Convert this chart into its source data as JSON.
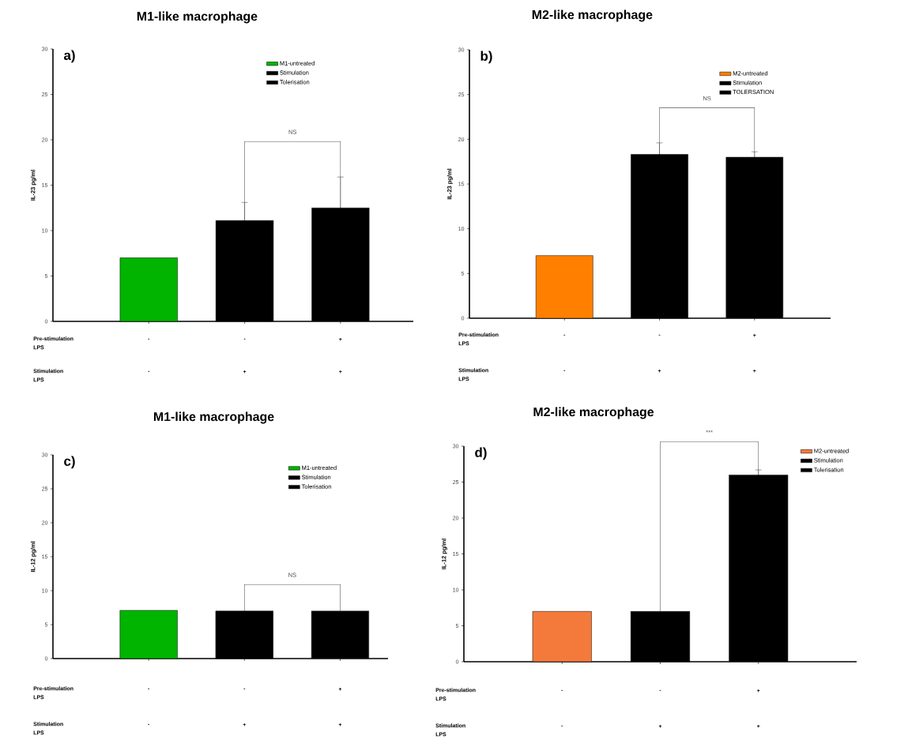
{
  "chart_data": [
    {
      "type": "bar",
      "title": "M1-like macrophage",
      "ylabel": "IL-23 pg/ml",
      "categories": [
        null,
        null,
        null
      ],
      "series": [
        {
          "name": "M1-untreated",
          "color": "#00b400",
          "values": [
            7,
            null,
            null
          ]
        },
        {
          "name": "Stimulation",
          "color": "#000000",
          "values": [
            null,
            11.1,
            null
          ],
          "errors": [
            null,
            2.0,
            null
          ]
        },
        {
          "name": "Tolerisation",
          "color": "#000000",
          "values": [
            null,
            null,
            12.5
          ],
          "errors": [
            null,
            null,
            3.4
          ]
        }
      ],
      "ylim": [
        0,
        30
      ],
      "yticks": [
        0,
        5,
        10,
        15,
        20,
        25,
        30
      ],
      "tick_labels": "y",
      "legend": "top right",
      "annotations": [
        "a)",
        "NS",
        "Pre-stimulation LPS",
        "-",
        "-",
        "+",
        "Stimulation LPS",
        "-",
        "+",
        "+"
      ]
    },
    {
      "type": "bar",
      "title": "M2-like macrophage",
      "ylabel": "IL-23 pg/ml",
      "categories": [
        null,
        null,
        null
      ],
      "series": [
        {
          "name": "M2-untreated",
          "color": "#ff8000",
          "values": [
            7,
            null,
            null
          ]
        },
        {
          "name": "Stimulation",
          "color": "#000000",
          "values": [
            null,
            18.3,
            null
          ],
          "errors": [
            null,
            1.3,
            null
          ]
        },
        {
          "name": "TOLERSATION",
          "color": "#000000",
          "values": [
            null,
            null,
            18.0
          ],
          "errors": [
            null,
            null,
            0.6
          ]
        }
      ],
      "ylim": [
        0,
        30
      ],
      "yticks": [
        0,
        5,
        10,
        15,
        20,
        25,
        30
      ],
      "tick_labels": "y",
      "legend": "top right",
      "annotations": [
        "b)",
        "NS",
        "Pre-stimulation LPS",
        "-",
        "-",
        "+",
        "Stimulation LPS",
        "-",
        "+",
        "+"
      ]
    },
    {
      "type": "bar",
      "title": "M1-like macrophage",
      "ylabel": "IL-12 pg/ml",
      "categories": [
        null,
        null,
        null
      ],
      "series": [
        {
          "name": "M1-untreated",
          "color": "#00b400",
          "values": [
            7.1,
            null,
            null
          ]
        },
        {
          "name": "Stimulation",
          "color": "#000000",
          "values": [
            null,
            7,
            null
          ]
        },
        {
          "name": "Tolerisation",
          "color": "#000000",
          "values": [
            null,
            null,
            7
          ]
        }
      ],
      "ylim": [
        0,
        30
      ],
      "yticks": [
        0,
        5,
        10,
        15,
        20,
        25,
        30
      ],
      "tick_labels": "y",
      "legend": "top right",
      "annotations": [
        "c)",
        "NS",
        "Pre-stimulation LPS",
        "-",
        "-",
        "+",
        "Stimulation LPS",
        "-",
        "+",
        "+"
      ]
    },
    {
      "type": "bar",
      "title": "M2-like macrophage",
      "ylabel": "IL-12 pg/ml",
      "categories": [
        null,
        null,
        null
      ],
      "series": [
        {
          "name": "M2-untreated",
          "color": "#f47a3c",
          "values": [
            7,
            null,
            null
          ]
        },
        {
          "name": "Stimulation",
          "color": "#000000",
          "values": [
            null,
            7,
            null
          ]
        },
        {
          "name": "Tolerisation",
          "color": "#000000",
          "values": [
            null,
            null,
            26
          ],
          "errors": [
            null,
            null,
            0.7
          ]
        }
      ],
      "ylim": [
        0,
        30
      ],
      "yticks": [
        0,
        5,
        10,
        15,
        20,
        25,
        30
      ],
      "tick_labels": "y",
      "legend": "top right",
      "annotations": [
        "d)",
        "***",
        "Pre-stimulation LPS",
        "-",
        "-",
        "+",
        "Stimulation LPS",
        "-",
        "+",
        "+"
      ]
    }
  ]
}
